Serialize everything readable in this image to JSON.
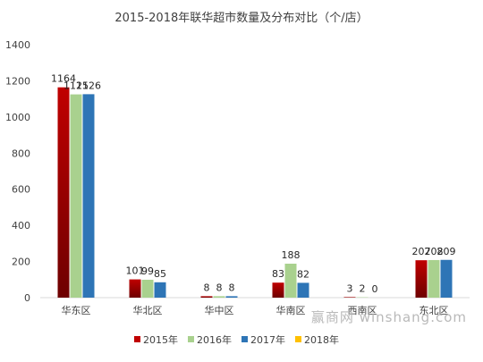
{
  "chart_data": {
    "type": "bar",
    "title": "2015-2018年联华超市数量及分布对比（个/店）",
    "categories": [
      "华东区",
      "华北区",
      "华中区",
      "华南区",
      "西南区",
      "东北区"
    ],
    "series": [
      {
        "name": "2015年",
        "values": [
          1164,
          101,
          8,
          83,
          3,
          207
        ],
        "color": "#c00000",
        "color_dark": "#6e0000"
      },
      {
        "name": "2016年",
        "values": [
          1125,
          99,
          8,
          188,
          2,
          208
        ],
        "color": "#a9d18e"
      },
      {
        "name": "2017年",
        "values": [
          1126,
          85,
          8,
          82,
          0,
          209
        ],
        "color": "#2e75b6"
      },
      {
        "name": "2018年",
        "values": [
          null,
          null,
          null,
          null,
          null,
          null
        ],
        "color": "#ffc000"
      }
    ],
    "data_labels": [
      [
        "1164",
        "101",
        "8",
        "83",
        "3",
        "207"
      ],
      [
        "1125",
        "99",
        "8",
        "188",
        "2",
        "208"
      ],
      [
        "1126",
        "85",
        "8",
        "82",
        "0",
        "209"
      ]
    ],
    "y_ticks": [
      "0",
      "200",
      "400",
      "600",
      "800",
      "1000",
      "1200",
      "1400"
    ],
    "ylim": [
      0,
      1400
    ],
    "grid": false,
    "legend_position": "bottom"
  },
  "watermark": {
    "brand_text": "赢商网",
    "url_text": "winshang.com"
  }
}
